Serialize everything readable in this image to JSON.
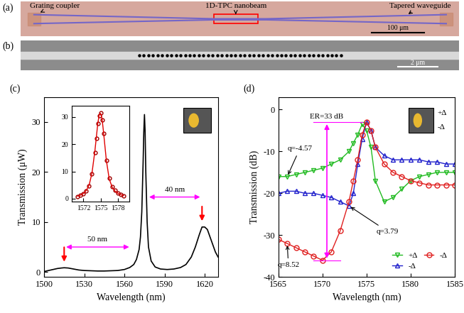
{
  "panels": [
    {
      "label": "(a)",
      "annotations": [
        "Grating coupler",
        "1D-TPC nanobeam",
        "Tapered waveguide"
      ],
      "scale_bar": "100 μm"
    },
    {
      "label": "(b)",
      "scale_bar": "2 μm"
    }
  ],
  "chart_data": [
    {
      "type": "line",
      "title": "(c)",
      "x_label": "Wavelength (nm)",
      "y_label": "Transmission (μW)",
      "x": [
        1500,
        1505,
        1510,
        1513,
        1515,
        1518,
        1522,
        1526,
        1530,
        1535,
        1540,
        1545,
        1550,
        1555,
        1560,
        1564,
        1567,
        1569,
        1571,
        1572,
        1573,
        1574,
        1574.5,
        1575,
        1575.5,
        1576,
        1577,
        1578,
        1580,
        1583,
        1587,
        1592,
        1597,
        1602,
        1606,
        1610,
        1613,
        1616,
        1618,
        1620,
        1622,
        1624,
        1626,
        1628,
        1630
      ],
      "values": [
        0.1,
        0.4,
        0.7,
        0.8,
        0.85,
        0.8,
        0.6,
        0.4,
        0.3,
        0.25,
        0.2,
        0.2,
        0.25,
        0.3,
        0.5,
        0.9,
        1.5,
        2.5,
        4.5,
        7,
        12,
        22,
        28,
        31.5,
        28,
        20,
        10,
        5,
        2.2,
        1.0,
        0.6,
        0.5,
        0.6,
        0.9,
        1.5,
        3,
        5,
        7.5,
        9,
        9,
        8.5,
        7,
        5.5,
        4,
        3
      ],
      "color": "#000000",
      "xlim": [
        1500,
        1630
      ],
      "xticks": [
        1500,
        1530,
        1560,
        1590,
        1620
      ],
      "ylim": [
        -1,
        35
      ],
      "yticks": [
        0,
        10,
        20,
        30
      ],
      "markers_x": [
        1515,
        1618
      ],
      "annotations": [
        {
          "text": "50 nm",
          "x": [
            1515,
            1565
          ],
          "y": 5
        },
        {
          "text": "40 nm",
          "x": [
            1577,
            1618
          ],
          "y": 15
        }
      ],
      "inset": {
        "type": "line",
        "xlim": [
          1570,
          1580
        ],
        "xticks": [
          1572,
          1575,
          1578
        ],
        "ylim": [
          -1,
          34
        ],
        "yticks": [
          0,
          10,
          20,
          30
        ],
        "x": [
          1571,
          1571.5,
          1572,
          1572.5,
          1573,
          1573.5,
          1574,
          1574.25,
          1574.5,
          1574.75,
          1575,
          1575.25,
          1575.5,
          1576,
          1576.5,
          1577,
          1577.5,
          1578,
          1578.5,
          1579
        ],
        "series": [
          {
            "type": "scatter",
            "color": "#a00000",
            "marker": "circle",
            "values": [
              0.8,
              1.2,
              1.8,
              2.8,
              4.8,
              9,
              17,
              22,
              27.5,
              30.5,
              31.5,
              29,
              24,
              14,
              7.5,
              4.5,
              3,
              2,
              1.5,
              1.1
            ]
          },
          {
            "type": "line",
            "color": "#e00000",
            "values": [
              0.9,
              1.3,
              1.9,
              3,
              5,
              9.5,
              17.5,
              22.5,
              27.5,
              30.8,
              31.3,
              29.3,
              24.5,
              14,
              7.2,
              4.3,
              2.8,
              2,
              1.5,
              1.1
            ]
          }
        ]
      }
    },
    {
      "type": "line",
      "title": "(d)",
      "x_label": "Wavelength (nm)",
      "y_label": "Transmission (dB)",
      "x": [
        1565,
        1566,
        1567,
        1568,
        1569,
        1570,
        1571,
        1572,
        1573,
        1573.5,
        1574,
        1574.5,
        1575,
        1575.5,
        1576,
        1577,
        1578,
        1579,
        1580,
        1581,
        1582,
        1583,
        1584,
        1585
      ],
      "series": [
        {
          "name": "+Δ",
          "color": "#22bb22",
          "marker": "triangle_down",
          "values": [
            -16,
            -16,
            -15.5,
            -15,
            -14.5,
            -14,
            -13,
            -12,
            -10,
            -8,
            -6,
            -3.5,
            -5,
            -9,
            -17,
            -22,
            -21,
            -19,
            -17,
            -16,
            -15.5,
            -15,
            -15,
            -15
          ]
        },
        {
          "name": "-Δ",
          "color": "#2222cc",
          "marker": "triangle_up",
          "values": [
            -20,
            -19.5,
            -19.5,
            -20,
            -20,
            -20.5,
            -21,
            -22,
            -23,
            -20,
            -13,
            -7,
            -3,
            -5,
            -9,
            -11,
            -12,
            -12,
            -12,
            -12,
            -12.5,
            -12.5,
            -13,
            -13
          ]
        },
        {
          "name": "-Δ",
          "color": "#e02020",
          "marker": "circle",
          "values": [
            -31,
            -32,
            -33,
            -34,
            -35,
            -36,
            -34,
            -29,
            -22,
            -17,
            -12,
            -6,
            -3,
            -5,
            -9,
            -13,
            -15,
            -16,
            -17,
            -17.5,
            -18,
            -18,
            -18,
            -18
          ]
        }
      ],
      "legend": "lower right",
      "xlim": [
        1565,
        1585
      ],
      "xticks": [
        1565,
        1570,
        1575,
        1580,
        1585
      ],
      "ylim": [
        -40,
        3
      ],
      "yticks": [
        -40,
        -30,
        -20,
        -10,
        0
      ],
      "annotations": [
        {
          "text": "q=-4.57",
          "x": 1566,
          "y": -16
        },
        {
          "text": "q=3.79",
          "x": 1573,
          "y": -23
        },
        {
          "text": "q=8.52",
          "x": 1566,
          "y": -32
        }
      ],
      "er": {
        "text": "ER=33 dB",
        "x": 1570.5,
        "y": [
          -36,
          -3
        ]
      },
      "icon_labels": [
        "+Δ",
        "-Δ"
      ]
    }
  ]
}
